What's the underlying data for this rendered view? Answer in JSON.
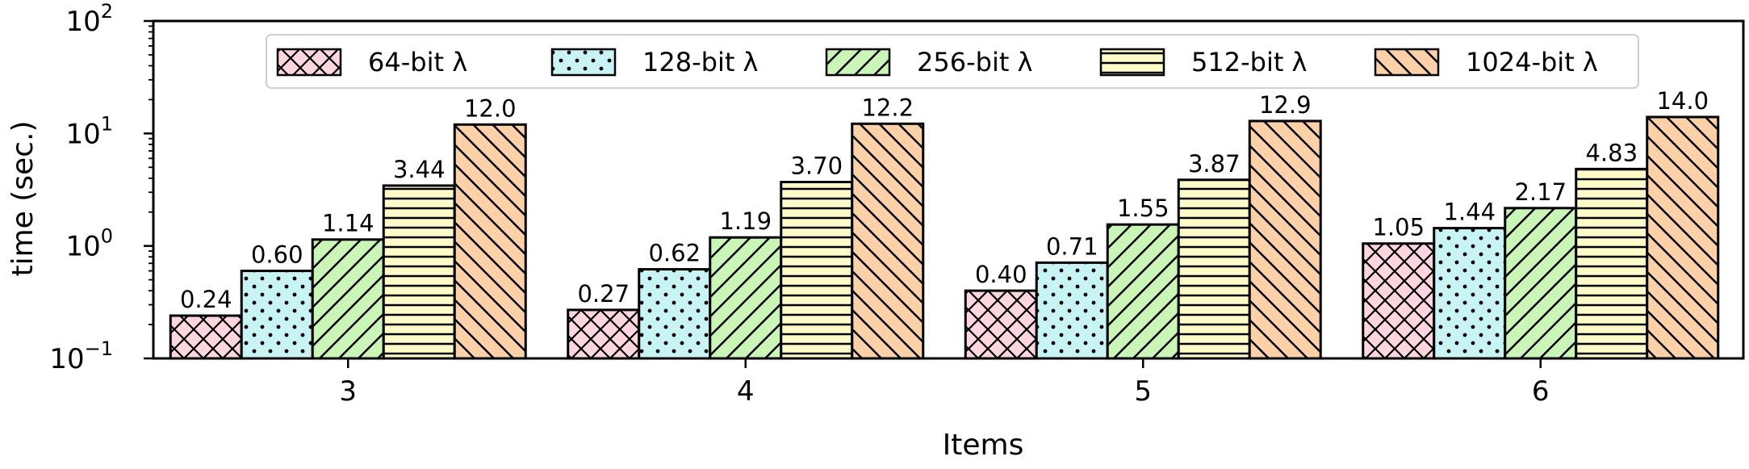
{
  "chart_data": {
    "type": "bar",
    "xlabel": "Items",
    "ylabel": "time (sec.)",
    "yscale": "log",
    "ylim": [
      0.1,
      100
    ],
    "y_ticks": [
      {
        "value": 0.1,
        "base": "10",
        "exp": "−1"
      },
      {
        "value": 1,
        "base": "10",
        "exp": "0"
      },
      {
        "value": 10,
        "base": "10",
        "exp": "1"
      },
      {
        "value": 100,
        "base": "10",
        "exp": "2"
      }
    ],
    "categories": [
      "3",
      "4",
      "5",
      "6"
    ],
    "legend_position": "top-center",
    "series": [
      {
        "name": "64-bit λ",
        "color": "#fcd5de",
        "hatch": "crosshatch",
        "values": [
          0.24,
          0.27,
          0.4,
          1.05
        ],
        "labels": [
          "0.24",
          "0.27",
          "0.40",
          "1.05"
        ]
      },
      {
        "name": "128-bit λ",
        "color": "#c8f4f6",
        "hatch": "dots",
        "values": [
          0.6,
          0.62,
          0.71,
          1.44
        ],
        "labels": [
          "0.60",
          "0.62",
          "0.71",
          "1.44"
        ]
      },
      {
        "name": "256-bit λ",
        "color": "#c9f5b6",
        "hatch": "diagonal-forward",
        "values": [
          1.14,
          1.19,
          1.55,
          2.17
        ],
        "labels": [
          "1.14",
          "1.19",
          "1.55",
          "2.17"
        ]
      },
      {
        "name": "512-bit λ",
        "color": "#fdfbc7",
        "hatch": "horizontal",
        "values": [
          3.44,
          3.7,
          3.87,
          4.83
        ],
        "labels": [
          "3.44",
          "3.70",
          "3.87",
          "4.83"
        ]
      },
      {
        "name": "1024-bit λ",
        "color": "#fcd1a8",
        "hatch": "diagonal-back",
        "values": [
          12.0,
          12.2,
          12.9,
          14.0
        ],
        "labels": [
          "12.0",
          "12.2",
          "12.9",
          "14.0"
        ]
      }
    ]
  }
}
